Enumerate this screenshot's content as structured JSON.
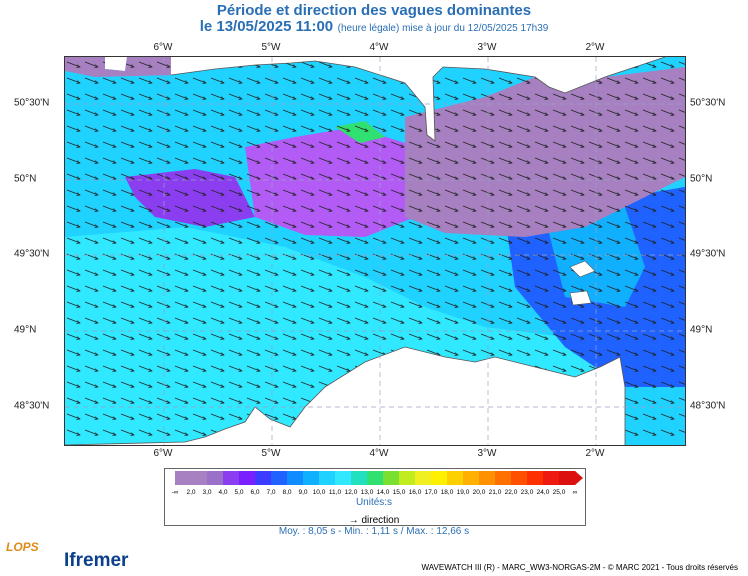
{
  "title": "Période et direction des vagues dominantes",
  "subtitle": {
    "date": "le 13/05/2025 11:00",
    "details": "(heure légale) mise à jour du 12/05/2025 17h39"
  },
  "axes": {
    "longitude_labels": [
      "6°W",
      "5°W",
      "4°W",
      "3°W",
      "2°W"
    ],
    "latitude_labels": [
      "50°30'N",
      "50°N",
      "49°30'N",
      "49°N",
      "48°30'N"
    ]
  },
  "colorbar": {
    "labels": [
      "-∞",
      "2,0",
      "3,0",
      "4,0",
      "5,0",
      "6,0",
      "7,0",
      "8,0",
      "9,0",
      "10,0",
      "11,0",
      "12,0",
      "13,0",
      "14,0",
      "15,0",
      "16,0",
      "17,0",
      "18,0",
      "19,0",
      "20,0",
      "21,0",
      "22,0",
      "23,0",
      "24,0",
      "25,0",
      "∞"
    ],
    "colors": [
      "#a680c0",
      "#a680c0",
      "#9a70c8",
      "#8a3ef0",
      "#7a20ff",
      "#3c3cff",
      "#1f62ff",
      "#0f8cff",
      "#10b0ff",
      "#20d2ff",
      "#30e8ff",
      "#20e0c0",
      "#30e070",
      "#7ae030",
      "#c0ec20",
      "#f0f020",
      "#fff000",
      "#ffd000",
      "#ffb000",
      "#ff9000",
      "#ff7000",
      "#ff5000",
      "#ff3000",
      "#ee1a10",
      "#dd1010"
    ],
    "units": "Unités:s"
  },
  "legend": {
    "direction_label": "direction"
  },
  "stats": "Moy. : 8,05 s   -   Min. : 1,11 s / Max. : 12,66 s",
  "footer": "WAVEWATCH III (R) - MARC_WW3-NORGAS-2M - © MARC 2021 - Tous droits réservés",
  "logos": {
    "lops": "LOPS",
    "ifremer": "Ifremer"
  },
  "map": {
    "water_colors": {
      "cyan": "#30e8ff",
      "light_cyan": "#20d2ff",
      "mid_blue": "#10b0ff",
      "blue": "#1f62ff",
      "purple": "#8a3ef0",
      "violet": "#b25cf5",
      "lilac": "#a680c0",
      "green": "#30e070"
    },
    "land_color": "#ffffff",
    "arrow_direction": "east-south-east"
  }
}
